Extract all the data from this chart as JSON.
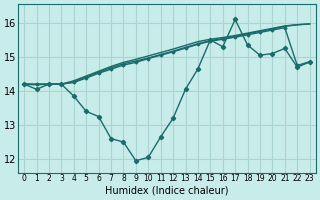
{
  "bg_color": "#c8ecea",
  "grid_color": "#aad4d0",
  "line_color": "#1a6b6b",
  "xlabel": "Humidex (Indice chaleur)",
  "ylim": [
    11.6,
    16.55
  ],
  "xlim": [
    -0.5,
    23.5
  ],
  "yticks": [
    12,
    13,
    14,
    15,
    16
  ],
  "xticks": [
    0,
    1,
    2,
    3,
    4,
    5,
    6,
    7,
    8,
    9,
    10,
    11,
    12,
    13,
    14,
    15,
    16,
    17,
    18,
    19,
    20,
    21,
    22,
    23
  ],
  "series": [
    {
      "y": [
        14.2,
        14.05,
        14.2,
        14.2,
        13.85,
        13.4,
        13.25,
        12.6,
        12.5,
        11.95,
        12.05,
        12.65,
        13.2,
        14.05,
        14.65,
        15.5,
        15.3,
        16.1,
        15.35,
        15.05,
        15.1,
        15.25,
        14.7,
        14.85
      ],
      "marker": true,
      "lw": 1.0,
      "ms": 2.2
    },
    {
      "y": [
        14.2,
        14.2,
        14.2,
        14.2,
        14.25,
        14.38,
        14.52,
        14.64,
        14.76,
        14.84,
        14.95,
        15.05,
        15.15,
        15.26,
        15.37,
        15.46,
        15.52,
        15.58,
        15.65,
        15.72,
        15.79,
        15.86,
        14.75,
        14.86
      ],
      "marker": true,
      "lw": 1.0,
      "ms": 1.5
    },
    {
      "y": [
        14.2,
        14.2,
        14.2,
        14.2,
        14.27,
        14.41,
        14.55,
        14.68,
        14.8,
        14.88,
        14.97,
        15.07,
        15.17,
        15.28,
        15.39,
        15.48,
        15.54,
        15.6,
        15.68,
        15.75,
        15.82,
        15.9,
        15.94,
        15.97
      ],
      "marker": false,
      "lw": 1.0,
      "ms": 0
    },
    {
      "y": [
        14.2,
        14.18,
        14.2,
        14.2,
        14.3,
        14.44,
        14.58,
        14.72,
        14.84,
        14.93,
        15.03,
        15.13,
        15.23,
        15.34,
        15.45,
        15.52,
        15.57,
        15.63,
        15.7,
        15.77,
        15.84,
        15.91,
        15.95,
        15.97
      ],
      "marker": false,
      "lw": 1.0,
      "ms": 0
    }
  ]
}
